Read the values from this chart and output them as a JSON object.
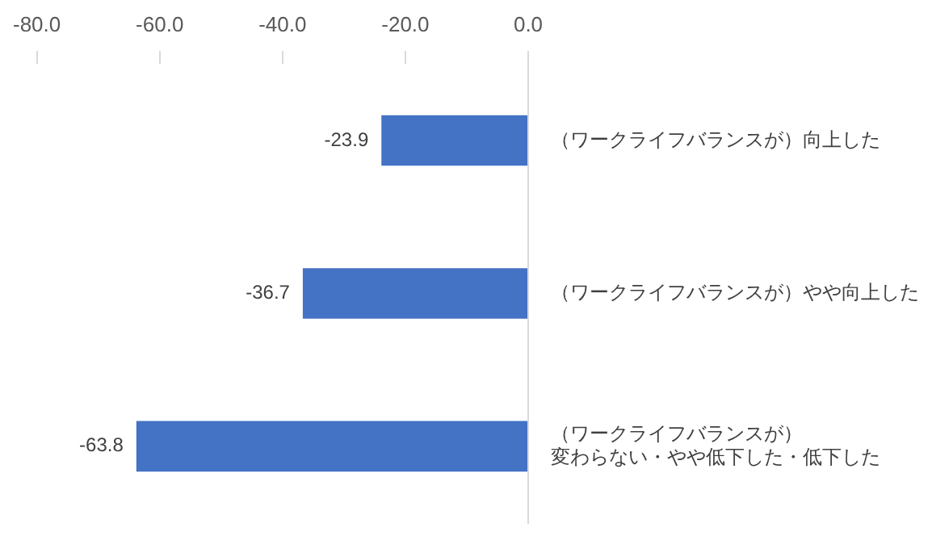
{
  "chart_data": {
    "type": "bar",
    "orientation": "horizontal",
    "categories": [
      "（ワークライフバランスが）向上した",
      "（ワークライフバランスが）やや向上した",
      "（ワークライフバランスが）変わらない・やや低下した・低下した"
    ],
    "values": [
      -23.9,
      -36.7,
      -63.8
    ],
    "color": "#4472c4",
    "xlim": [
      -80,
      0
    ],
    "xticks": [
      {
        "value": -80,
        "label": "-80.0"
      },
      {
        "value": -60,
        "label": "-60.0"
      },
      {
        "value": -40,
        "label": "-40.0"
      },
      {
        "value": -20,
        "label": "-20.0"
      },
      {
        "value": 0,
        "label": "0.0"
      }
    ],
    "grid": false,
    "legend": false,
    "data_labels": true
  }
}
